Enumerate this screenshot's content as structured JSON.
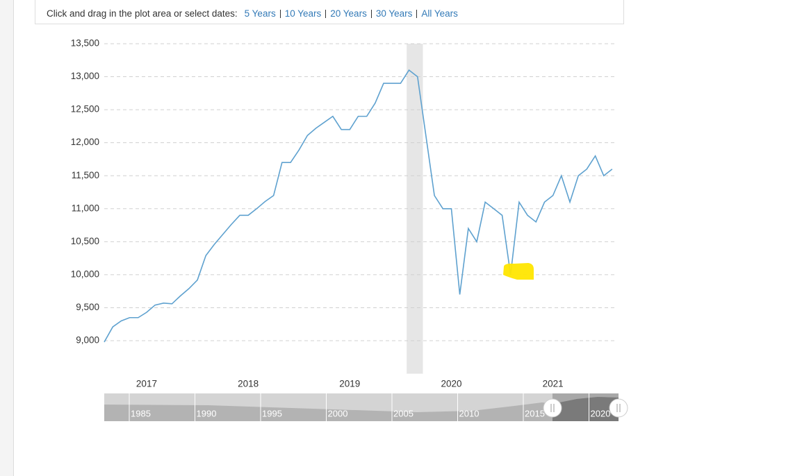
{
  "toolbar": {
    "prompt": "Click and drag in the plot area or select dates:",
    "ranges": [
      "5 Years",
      "10 Years",
      "20 Years",
      "30 Years",
      "All Years"
    ]
  },
  "chart_data": {
    "type": "line",
    "x": [
      2016.583,
      2016.667,
      2016.75,
      2016.833,
      2016.917,
      2017,
      2017.083,
      2017.167,
      2017.25,
      2017.333,
      2017.417,
      2017.5,
      2017.583,
      2017.667,
      2017.75,
      2017.833,
      2017.917,
      2018,
      2018.083,
      2018.167,
      2018.25,
      2018.333,
      2018.417,
      2018.5,
      2018.583,
      2018.667,
      2018.75,
      2018.833,
      2018.917,
      2019,
      2019.083,
      2019.167,
      2019.25,
      2019.333,
      2019.417,
      2019.5,
      2019.583,
      2019.667,
      2019.833,
      2019.917,
      2020,
      2020.083,
      2020.167,
      2020.25,
      2020.333,
      2020.417,
      2020.5,
      2020.583,
      2020.667,
      2020.75,
      2020.833,
      2020.917,
      2021,
      2021.083,
      2021.167,
      2021.25,
      2021.333,
      2021.417,
      2021.5,
      2021.583
    ],
    "series": [
      {
        "color": "#5ea1cf",
        "values": [
          8980,
          9210,
          9300,
          9350,
          9350,
          9430,
          9540,
          9570,
          9560,
          9680,
          9790,
          9920,
          10290,
          10460,
          10610,
          10760,
          10900,
          10900,
          11000,
          11110,
          11200,
          11700,
          11700,
          11890,
          12110,
          12220,
          12310,
          12400,
          12200,
          12200,
          12400,
          12400,
          12600,
          12900,
          12900,
          12900,
          13100,
          13000,
          11200,
          11000,
          11000,
          9700,
          10700,
          10500,
          11100,
          11000,
          10900,
          10000,
          11100,
          10900,
          10800,
          11100,
          11200,
          11500,
          11100,
          11500,
          11600,
          11800,
          11500,
          11600
        ]
      }
    ],
    "xlim": [
      2016.583,
      2021.625
    ],
    "xticks": [
      2017,
      2018,
      2019,
      2020,
      2021
    ],
    "ylim": [
      8500,
      13500
    ],
    "yticks": [
      {
        "value": 9000,
        "label": "9,000"
      },
      {
        "value": 9500,
        "label": "9,500"
      },
      {
        "value": 10000,
        "label": "10,000"
      },
      {
        "value": 10500,
        "label": "10,500"
      },
      {
        "value": 11000,
        "label": "11,000"
      },
      {
        "value": 11500,
        "label": "11,500"
      },
      {
        "value": 12000,
        "label": "12,000"
      },
      {
        "value": 12500,
        "label": "12,500"
      },
      {
        "value": 13000,
        "label": "13,000"
      },
      {
        "value": 13500,
        "label": "13,500"
      }
    ],
    "grid": true,
    "shaded_x": [
      2019.56,
      2019.72
    ]
  },
  "navigator": {
    "labels": [
      "1985",
      "1990",
      "1995",
      "2000",
      "2005",
      "2010",
      "2015",
      "2020"
    ]
  }
}
